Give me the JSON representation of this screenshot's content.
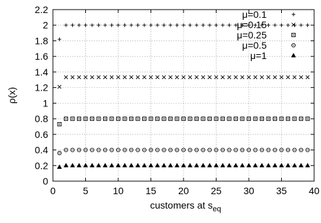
{
  "chart_data": {
    "type": "scatter",
    "title": "",
    "xlabel": "customers at s",
    "xlabel_sub": "eq",
    "ylabel": "ρ(x)",
    "xlim": [
      0,
      40
    ],
    "ylim": [
      0,
      2.2
    ],
    "x_ticks": [
      "0",
      "5",
      "10",
      "15",
      "20",
      "25",
      "30",
      "35",
      "40"
    ],
    "y_ticks": [
      "0",
      "0.2",
      "0.4",
      "0.6",
      "0.8",
      "1",
      "1.2",
      "1.4",
      "1.6",
      "1.8",
      "2",
      "2.2"
    ],
    "grid": true,
    "legend_position": "top-right",
    "x": [
      1,
      2,
      3,
      4,
      5,
      6,
      7,
      8,
      9,
      10,
      11,
      12,
      13,
      14,
      15,
      16,
      17,
      18,
      19,
      20,
      21,
      22,
      23,
      24,
      25,
      26,
      27,
      28,
      29,
      30,
      31,
      32,
      33,
      34,
      35,
      36,
      37,
      38,
      39
    ],
    "series": [
      {
        "name": "μ=0.1",
        "marker": "plus",
        "first": 1.82,
        "steady": 2.0
      },
      {
        "name": "μ=0.15",
        "marker": "cross",
        "first": 1.21,
        "steady": 1.333
      },
      {
        "name": "μ=0.25",
        "marker": "square",
        "first": 0.73,
        "steady": 0.8
      },
      {
        "name": "μ=0.5",
        "marker": "circle",
        "first": 0.36,
        "steady": 0.4
      },
      {
        "name": "μ=1",
        "marker": "triangle",
        "first": 0.18,
        "steady": 0.2
      }
    ]
  }
}
